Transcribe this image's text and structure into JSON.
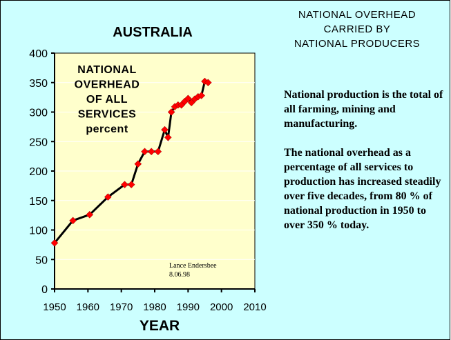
{
  "side_title": [
    "NATIONAL OVERHEAD",
    "CARRIED BY",
    "NATIONAL PRODUCERS"
  ],
  "description": [
    "National production is the total of all farming, mining and manufacturing.",
    "The national overhead as a percentage of all services to production has increased steadily over five decades, from 80 % of national production in 1950 to over 350 % today."
  ],
  "chart_data": {
    "type": "line",
    "title": "AUSTRALIA",
    "xlabel": "YEAR",
    "ylabel": "",
    "annotation": [
      "NATIONAL",
      "OVERHEAD",
      "OF ALL",
      "SERVICES",
      "percent"
    ],
    "credit": [
      "Lance Endersbee",
      "8.06.98"
    ],
    "xlim": [
      1950,
      2010
    ],
    "ylim": [
      0,
      400
    ],
    "xticks": [
      1950,
      1960,
      1970,
      1980,
      1990,
      2000,
      2010
    ],
    "yticks": [
      0,
      50,
      100,
      150,
      200,
      250,
      300,
      350,
      400
    ],
    "grid": true,
    "series": [
      {
        "name": "National overhead of all services (%)",
        "x": [
          1950,
          1955.5,
          1960.5,
          1966,
          1971,
          1973,
          1975,
          1977,
          1979,
          1981,
          1983,
          1984,
          1985,
          1986,
          1987,
          1988,
          1989,
          1990,
          1991,
          1992,
          1993,
          1994,
          1995,
          1996
        ],
        "y": [
          78,
          116,
          126,
          156,
          177,
          177,
          212,
          233,
          233,
          233,
          270,
          257,
          300,
          309,
          312,
          312,
          318,
          323,
          316,
          322,
          326,
          328,
          352,
          350
        ]
      }
    ],
    "colors": {
      "line": "#000000",
      "marker": "#ff0000",
      "plot_bg": "#ffffcc",
      "page_bg": "#ccffff",
      "grid": "#ffffff"
    }
  }
}
